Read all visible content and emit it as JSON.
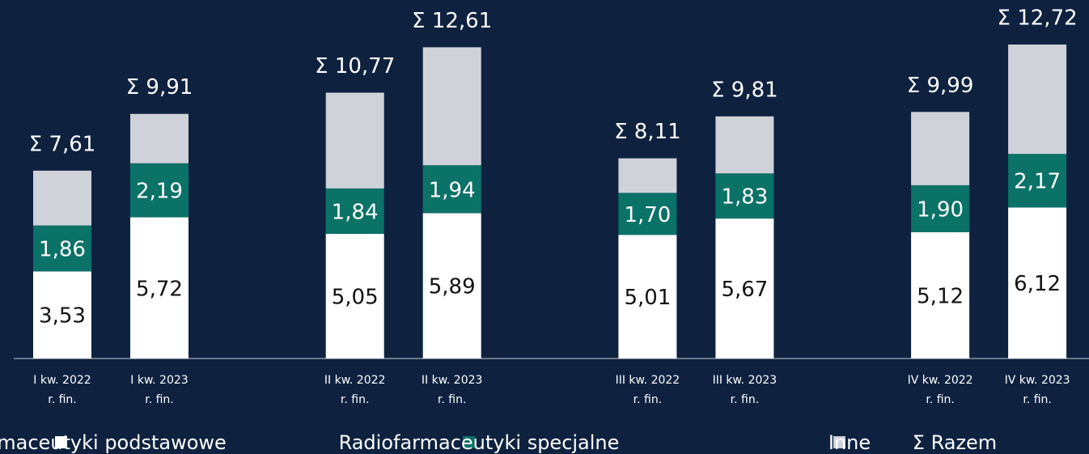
{
  "chart_data": {
    "type": "stacked_bar",
    "categories": [
      "I kw. 2022\nr. fin.",
      "I kw. 2023\nr. fin.",
      "II kw. 2022\nr. fin.",
      "II kw. 2023\nr. fin.",
      "III kw. 2022\nr. fin.",
      "III kw. 2023\nr. fin.",
      "IV kw. 2022\nr. fin.",
      "IV kw. 2023\nr. fin."
    ],
    "series": [
      {
        "name": "Radiofarmaceutyki podstawowe",
        "color": "#ffffff",
        "values": [
          3.53,
          5.72,
          5.05,
          5.89,
          5.01,
          5.67,
          5.12,
          6.12
        ],
        "value_labels": [
          "3,53",
          "5,72",
          "5,05",
          "5,89",
          "5,01",
          "5,67",
          "5,12",
          "6,12"
        ]
      },
      {
        "name": "Radiofarmaceutyki specjalne",
        "color": "#0b7268",
        "values": [
          1.86,
          2.19,
          1.84,
          1.94,
          1.7,
          1.83,
          1.9,
          2.17
        ],
        "value_labels": [
          "1,86",
          "2,19",
          "1,84",
          "1,94",
          "1,70",
          "1,83",
          "1,90",
          "2,17"
        ]
      },
      {
        "name": "Inne",
        "color": "#d0d2d9",
        "values": [
          2.22,
          2.0,
          3.88,
          4.78,
          1.4,
          2.31,
          2.97,
          4.43
        ]
      }
    ],
    "totals": {
      "name": "Σ Razem",
      "values": [
        7.61,
        9.91,
        10.77,
        12.61,
        8.11,
        9.81,
        9.99,
        12.72
      ],
      "value_labels": [
        "Σ 7,61",
        "Σ 9,91",
        "Σ 10,77",
        "Σ 12,61",
        "Σ 8,11",
        "Σ 9,81",
        "Σ 9,99",
        "Σ 12,72"
      ]
    },
    "ylim": [
      0,
      13
    ]
  }
}
